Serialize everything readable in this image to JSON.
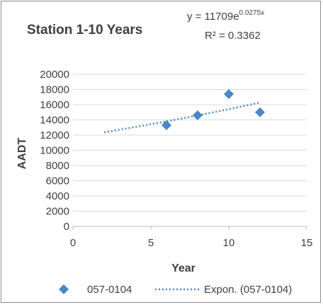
{
  "chart_data": {
    "type": "scatter",
    "title": "Station 1-10 Years",
    "xlabel": "Year",
    "ylabel": "AADT",
    "xlim": [
      0,
      15
    ],
    "ylim": [
      0,
      20000
    ],
    "x_ticks": [
      "0",
      "5",
      "10",
      "15"
    ],
    "y_ticks": [
      "0",
      "2000",
      "4000",
      "6000",
      "8000",
      "10000",
      "12000",
      "14000",
      "16000",
      "18000",
      "20000"
    ],
    "grid": "horizontal",
    "legend_position": "bottom",
    "series": [
      {
        "name": "057-0104",
        "marker": "diamond",
        "color": "#4a86c8",
        "x": [
          6,
          8,
          10,
          12
        ],
        "y": [
          13300,
          14600,
          17400,
          15000
        ]
      }
    ],
    "trendline": {
      "name": "Expon. (057-0104)",
      "style": "dotted",
      "color": "#4a86c8",
      "a": 11709,
      "b": 0.0275,
      "x_range": [
        2,
        12
      ],
      "equation_prefix": "y = 11709e",
      "equation_exponent": "0.0275x",
      "r_squared": "R² = 0.3362"
    }
  }
}
